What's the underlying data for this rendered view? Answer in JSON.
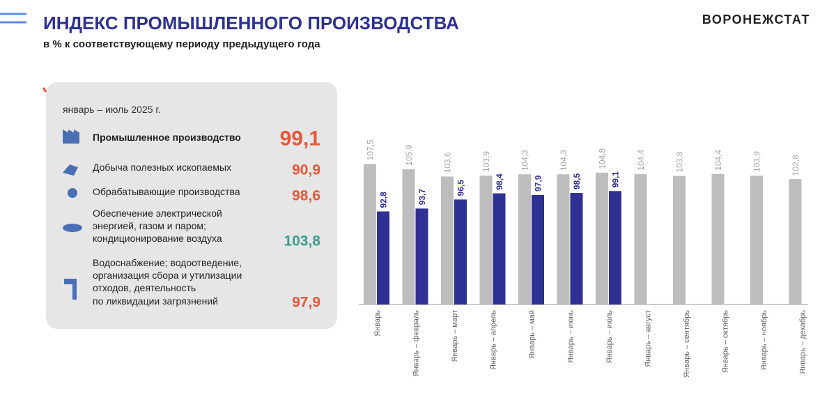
{
  "header": {
    "title": "ИНДЕКС ПРОМЫШЛЕННОГО ПРОИЗВОДСТВА",
    "subtitle": "в % к соответствующему периоду предыдущего  года",
    "brand": "ВОРОНЕЖСТАТ"
  },
  "panel": {
    "period": "январь – июль 2025 г.",
    "items": [
      {
        "label": [
          "Промышленное производство"
        ],
        "value": "99,1",
        "color": "#e8563a"
      },
      {
        "label": [
          "Добыча полезных ископаемых"
        ],
        "value": "90,9",
        "color": "#e8563a"
      },
      {
        "label": [
          "Обрабатывающие производства"
        ],
        "value": "98,6",
        "color": "#e8563a"
      },
      {
        "label": [
          "Обеспечение электрической",
          "энергией, газом и паром;",
          "кондиционирование воздуха"
        ],
        "value": "103,8",
        "color": "#3a9e8c"
      },
      {
        "label": [
          "Водоснабжение; водоотведение,",
          "организация сбора и утилизации",
          "отходов, деятельность",
          "по ликвидации загрязнений"
        ],
        "value": "97,9",
        "color": "#e8563a"
      }
    ]
  },
  "chart_data": {
    "type": "bar",
    "categories": [
      "Январь",
      "Январь – февраль",
      "Январь – март",
      "Январь – апрель",
      "Январь – май",
      "Январь – июнь",
      "Январь – июль",
      "Январь – август",
      "Январь – сентябрь",
      "Январь – октябрь",
      "Январь – ноябрь",
      "Январь – декабрь"
    ],
    "series": [
      {
        "color": "#bdbdbd",
        "label_color": "#a6a6a6",
        "values": [
          107.5,
          105.9,
          103.6,
          103.9,
          104.3,
          104.3,
          104.8,
          104.4,
          103.8,
          104.4,
          103.9,
          102.8
        ],
        "value_labels": [
          "107,5",
          "105,9",
          "103,6",
          "103,9",
          "104,3",
          "104,3",
          "104,8",
          "104,4",
          "103,8",
          "104,4",
          "103,9",
          "102,8"
        ]
      },
      {
        "color": "#2e3192",
        "label_color": "#2e3192",
        "values": [
          92.8,
          93.7,
          96.5,
          98.4,
          97.9,
          98.5,
          99.1,
          null,
          null,
          null,
          null,
          null
        ],
        "value_labels": [
          "92,8",
          "93,7",
          "96,5",
          "98,4",
          "97,9",
          "98,5",
          "99,1",
          null,
          null,
          null,
          null,
          null
        ]
      }
    ],
    "ylim": [
      64,
      108
    ]
  }
}
